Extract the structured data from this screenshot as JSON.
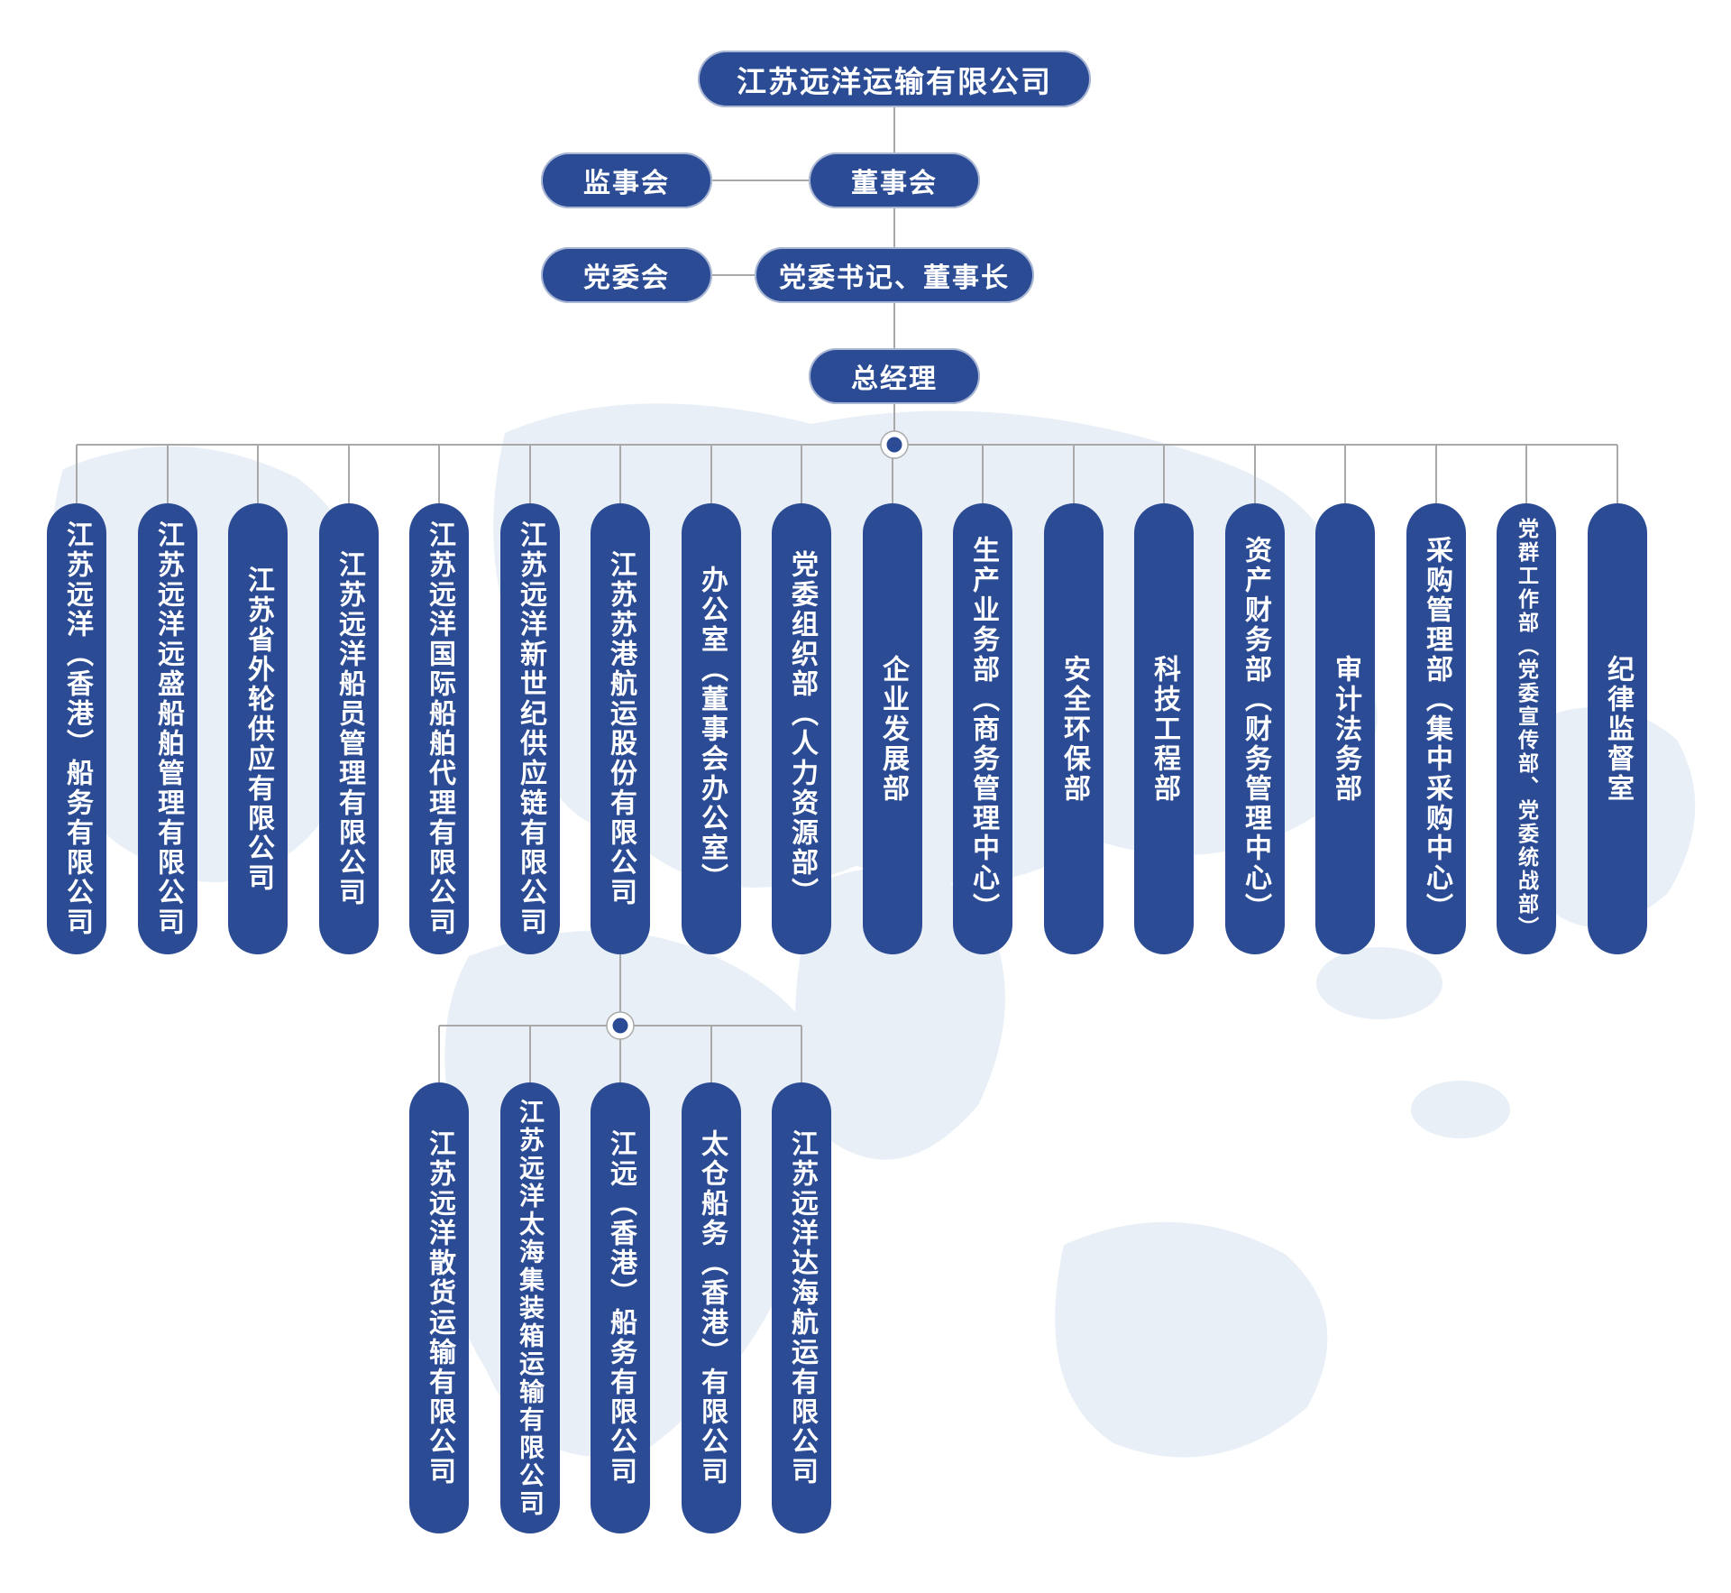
{
  "colors": {
    "node_blue": "#2b4b94",
    "line_gray": "#a9a9a9",
    "map_light_blue": "#d8e3f0",
    "label_white": "#ffffff"
  },
  "root": {
    "label": "江苏远洋运输有限公司"
  },
  "governance": {
    "supervisory_board": "监事会",
    "board_of_directors": "董事会",
    "party_committee": "党委会",
    "party_secretary_chairman": "党委书记、董事长",
    "general_manager": "总经理"
  },
  "departments": [
    "江苏远洋（香港）船务有限公司",
    "江苏远洋远盛船舶管理有限公司",
    "江苏省外轮供应有限公司",
    "江苏远洋船员管理有限公司",
    "江苏远洋国际船舶代理有限公司",
    "江苏远洋新世纪供应链有限公司",
    "江苏苏港航运股份有限公司",
    "办公室（董事会办公室）",
    "党委组织部（人力资源部）",
    "企业发展部",
    "生产业务部（商务管理中心）",
    "安全环保部",
    "科技工程部",
    "资产财务部（财务管理中心）",
    "审计法务部",
    "采购管理部（集中采购中心）",
    "党群工作部（党委宣传部、党委统战部）",
    "纪律监督室"
  ],
  "sub_chart": {
    "parent_label": "江苏苏港航运股份有限公司",
    "children": [
      "江苏远洋散货运输有限公司",
      "江苏远洋太海集装箱运输有限公司",
      "江远（香港）船务有限公司",
      "太仓船务（香港）有限公司",
      "江苏远洋达海航运有限公司"
    ]
  }
}
